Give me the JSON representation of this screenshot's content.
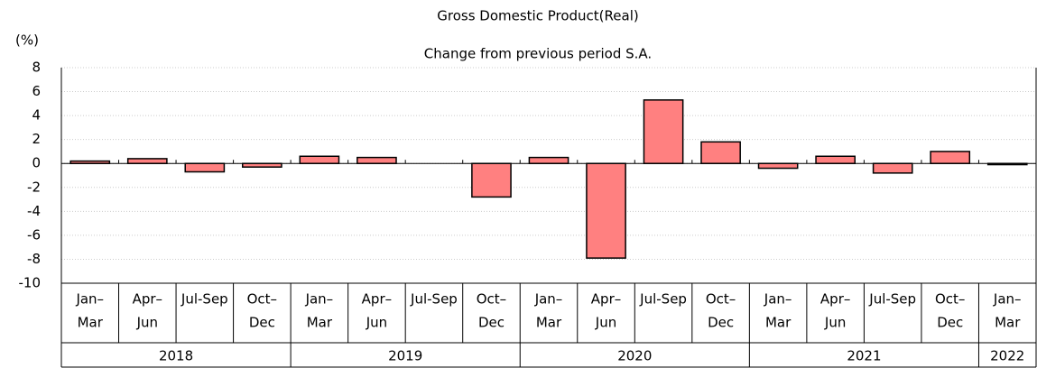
{
  "chart_data": {
    "type": "bar",
    "title": "Gross Domestic Product(Real)",
    "subtitle": "Change from previous period S.A.",
    "y_label": "(%)",
    "categories": [
      [
        "Jan–",
        "Mar"
      ],
      [
        "Apr–",
        "Jun"
      ],
      [
        "Jul-Sep"
      ],
      [
        "Oct–",
        "Dec"
      ],
      [
        "Jan–",
        "Mar"
      ],
      [
        "Apr–",
        "Jun"
      ],
      [
        "Jul-Sep"
      ],
      [
        "Oct–",
        "Dec"
      ],
      [
        "Jan–",
        "Mar"
      ],
      [
        "Apr–",
        "Jun"
      ],
      [
        "Jul-Sep"
      ],
      [
        "Oct–",
        "Dec"
      ],
      [
        "Jan–",
        "Mar"
      ],
      [
        "Apr–",
        "Jun"
      ],
      [
        "Jul-Sep"
      ],
      [
        "Oct–",
        "Dec"
      ],
      [
        "Jan–",
        "Mar"
      ]
    ],
    "groups": [
      {
        "label": "2018",
        "span": 4
      },
      {
        "label": "2019",
        "span": 4
      },
      {
        "label": "2020",
        "span": 4
      },
      {
        "label": "2021",
        "span": 4
      },
      {
        "label": "2022",
        "span": 1
      }
    ],
    "values": [
      0.2,
      0.4,
      -0.7,
      -0.3,
      0.6,
      0.5,
      0.0,
      -2.8,
      0.5,
      -7.9,
      5.3,
      1.8,
      -0.4,
      0.6,
      -0.8,
      1.0,
      -0.1
    ],
    "color": "#ff8080",
    "ylim": [
      -10,
      8
    ],
    "yticks": [
      -10,
      -8,
      -6,
      -4,
      -2,
      0,
      2,
      4,
      6,
      8
    ],
    "grid": true
  }
}
